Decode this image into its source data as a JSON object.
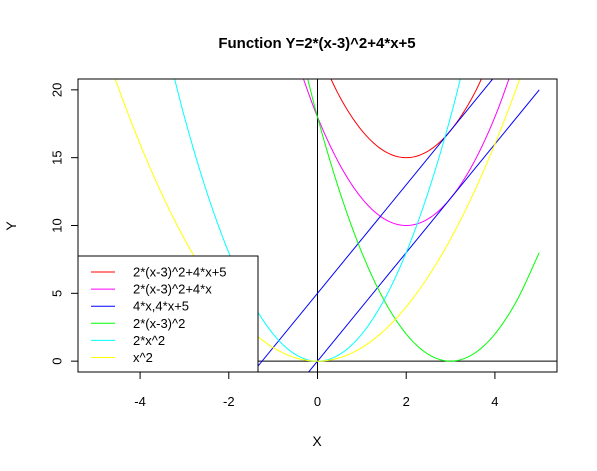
{
  "chart_data": {
    "type": "line",
    "title": "Function Y=2*(x-3)^2+4*x+5",
    "xlabel": "X",
    "ylabel": "Y",
    "xlim": [
      -5.4,
      5.4
    ],
    "ylim": [
      -0.8,
      20.8
    ],
    "x_ticks": [
      -4,
      -2,
      0,
      2,
      4
    ],
    "x_tick_labels": [
      "-4",
      "-2",
      "0",
      "2",
      "4"
    ],
    "y_ticks": [
      0,
      5,
      10,
      15,
      20
    ],
    "y_tick_labels": [
      "0",
      "5",
      "10",
      "15",
      "20"
    ],
    "reference_lines": {
      "horizontal_y": 0,
      "vertical_x": 0
    },
    "legend_position": "bottom-left",
    "series": [
      {
        "name": "2*(x-3)^2+4*x+5",
        "color": "#ff0000",
        "x": [
          0,
          0.5,
          1,
          1.5,
          2,
          2.5,
          3,
          3.5,
          4
        ],
        "y": [
          23,
          19.5,
          17,
          15.5,
          15,
          15.5,
          17,
          19.5,
          23
        ]
      },
      {
        "name": "2*(x-3)^2+4*x",
        "color": "#ff00ff",
        "x": [
          -0.5,
          0,
          0.5,
          1,
          1.5,
          2,
          2.5,
          3,
          3.5,
          4,
          4.5
        ],
        "y": [
          22.5,
          18,
          14.5,
          12,
          10.5,
          10,
          10.5,
          12,
          14.5,
          18,
          22.5
        ]
      },
      {
        "name": "4*x,4*x+5",
        "color": "#0000ff",
        "x": [
          -1.5,
          4
        ],
        "y": [
          -1,
          21
        ]
      },
      {
        "name": "4*x,4*x+5",
        "color": "#0000ff",
        "x": [
          -1.5,
          5
        ],
        "y": [
          -6,
          20
        ]
      },
      {
        "name": "2*(x-3)^2",
        "color": "#00ff00",
        "x": [
          -0.5,
          0,
          0.5,
          1,
          1.5,
          2,
          2.5,
          3,
          3.5,
          4,
          4.5,
          5
        ],
        "y": [
          24.5,
          18,
          12.5,
          8,
          4.5,
          2,
          0.5,
          0,
          0.5,
          2,
          4.5,
          8
        ]
      },
      {
        "name": "2*x^2",
        "color": "#00ffff",
        "x": [
          -3.5,
          -3,
          -2.5,
          -2,
          -1.5,
          -1,
          -0.5,
          0,
          0.5,
          1,
          1.5,
          2,
          2.5,
          3,
          3.5
        ],
        "y": [
          24.5,
          18,
          12.5,
          8,
          4.5,
          2,
          0.5,
          0,
          0.5,
          2,
          4.5,
          8,
          12.5,
          18,
          24.5
        ]
      },
      {
        "name": "x^2",
        "color": "#ffff00",
        "x": [
          -5,
          -4.5,
          -4,
          -3.5,
          -3,
          -2.5,
          -2,
          -1.5,
          -1,
          -0.5,
          0,
          0.5,
          1,
          1.5,
          2,
          2.5,
          3,
          3.5,
          4,
          4.5,
          5
        ],
        "y": [
          25,
          20.25,
          16,
          12.25,
          9,
          6.25,
          4,
          2.25,
          1,
          0.25,
          0,
          0.25,
          1,
          2.25,
          4,
          6.25,
          9,
          12.25,
          16,
          20.25,
          25
        ]
      }
    ],
    "legend": [
      {
        "label": "2*(x-3)^2+4*x+5",
        "color": "#ff0000"
      },
      {
        "label": "2*(x-3)^2+4*x",
        "color": "#ff00ff"
      },
      {
        "label": "4*x,4*x+5",
        "color": "#0000ff"
      },
      {
        "label": "2*(x-3)^2",
        "color": "#00ff00"
      },
      {
        "label": "2*x^2",
        "color": "#00ffff"
      },
      {
        "label": "x^2",
        "color": "#ffff00"
      }
    ]
  }
}
